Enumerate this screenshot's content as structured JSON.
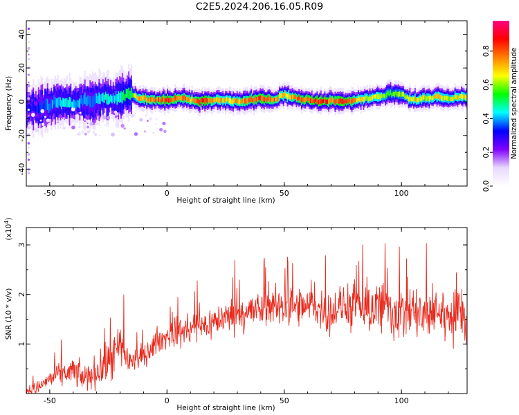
{
  "title": "C2E5.2024.206.16.05.R09",
  "chart_data": [
    {
      "type": "heatmap",
      "xlabel": "Height of straight line (km)",
      "ylabel": "Frequency (Hz)",
      "xlim": [
        -60,
        128
      ],
      "ylim": [
        -50,
        48
      ],
      "x_ticks": [
        -50,
        0,
        50,
        100
      ],
      "y_ticks": [
        40,
        20,
        0,
        -20,
        -40
      ],
      "colorbar": {
        "label": "Normalized spectral amplitude",
        "range": [
          0.0,
          0.98
        ],
        "ticks": [
          0.0,
          0.2,
          0.4,
          0.6,
          0.8
        ],
        "colormap": [
          "#ffffff",
          "#e8d8ff",
          "#8000ff",
          "#0000ff",
          "#00ffff",
          "#00ff00",
          "#ffff00",
          "#ff8000",
          "#ff0000",
          "#ff0080"
        ]
      },
      "ridge": {
        "x": [
          -57,
          -52,
          -47,
          -42,
          -37,
          -32,
          -27,
          -22,
          -19,
          -16,
          -12,
          -5,
          0,
          5,
          10,
          15,
          20,
          25,
          30,
          35,
          40,
          45,
          50,
          55,
          60,
          65,
          70,
          75,
          80,
          85,
          90,
          95,
          100,
          105,
          110,
          115,
          120,
          125
        ],
        "y": [
          -4,
          -3,
          0,
          -1,
          0,
          0,
          3,
          1,
          4,
          5,
          2,
          1,
          1,
          2,
          1,
          0,
          1,
          1,
          0,
          1,
          2,
          1,
          4,
          2,
          1,
          0,
          1,
          0,
          1,
          2,
          3,
          5,
          4,
          1,
          2,
          3,
          2,
          3
        ],
        "amplitude": [
          0.35,
          0.4,
          0.45,
          0.5,
          0.45,
          0.4,
          0.5,
          0.45,
          0.55,
          0.55,
          0.8,
          0.85,
          0.9,
          0.85,
          0.8,
          0.95,
          0.8,
          0.75,
          0.8,
          0.85,
          0.9,
          0.85,
          0.75,
          0.85,
          0.9,
          0.95,
          0.85,
          0.95,
          0.8,
          0.7,
          0.75,
          0.6,
          0.65,
          0.75,
          0.7,
          0.75,
          0.7,
          0.75
        ]
      }
    },
    {
      "type": "line",
      "xlabel": "Height of straight line (km)",
      "ylabel": "SNR (10 * v/v)",
      "yscale_label": "(x10^4)",
      "xlim": [
        -60,
        128
      ],
      "ylim": [
        0,
        3.35
      ],
      "x_ticks": [
        -50,
        0,
        50,
        100
      ],
      "y_ticks": [
        1,
        2,
        3
      ],
      "color": "#e8291c",
      "series": [
        {
          "x": [
            -60,
            -55,
            -50,
            -45,
            -40,
            -35,
            -30,
            -25,
            -20,
            -15,
            -10,
            -5,
            0,
            5,
            10,
            15,
            20,
            25,
            30,
            35,
            40,
            45,
            50,
            55,
            60,
            65,
            70,
            75,
            80,
            85,
            90,
            95,
            100,
            105,
            110,
            115,
            120,
            125,
            128
          ],
          "values": [
            0.05,
            0.12,
            0.3,
            0.4,
            0.45,
            0.3,
            0.45,
            0.6,
            0.9,
            0.65,
            0.75,
            1.0,
            1.15,
            1.25,
            1.3,
            1.35,
            1.45,
            1.55,
            1.6,
            1.65,
            1.7,
            1.75,
            1.8,
            1.7,
            1.75,
            1.7,
            1.65,
            1.75,
            1.65,
            1.7,
            1.75,
            1.7,
            1.6,
            1.65,
            1.5,
            1.7,
            1.55,
            1.6,
            1.55
          ],
          "noise": [
            0.08,
            0.15,
            0.2,
            0.25,
            0.3,
            0.3,
            0.35,
            0.45,
            0.6,
            0.3,
            0.25,
            0.25,
            0.25,
            0.35,
            0.4,
            0.35,
            0.35,
            0.35,
            0.4,
            0.4,
            0.4,
            0.4,
            0.45,
            0.45,
            0.4,
            0.45,
            0.45,
            0.45,
            0.5,
            0.55,
            0.65,
            0.6,
            0.6,
            0.6,
            0.6,
            0.55,
            0.55,
            0.55,
            0.55
          ]
        }
      ]
    }
  ]
}
